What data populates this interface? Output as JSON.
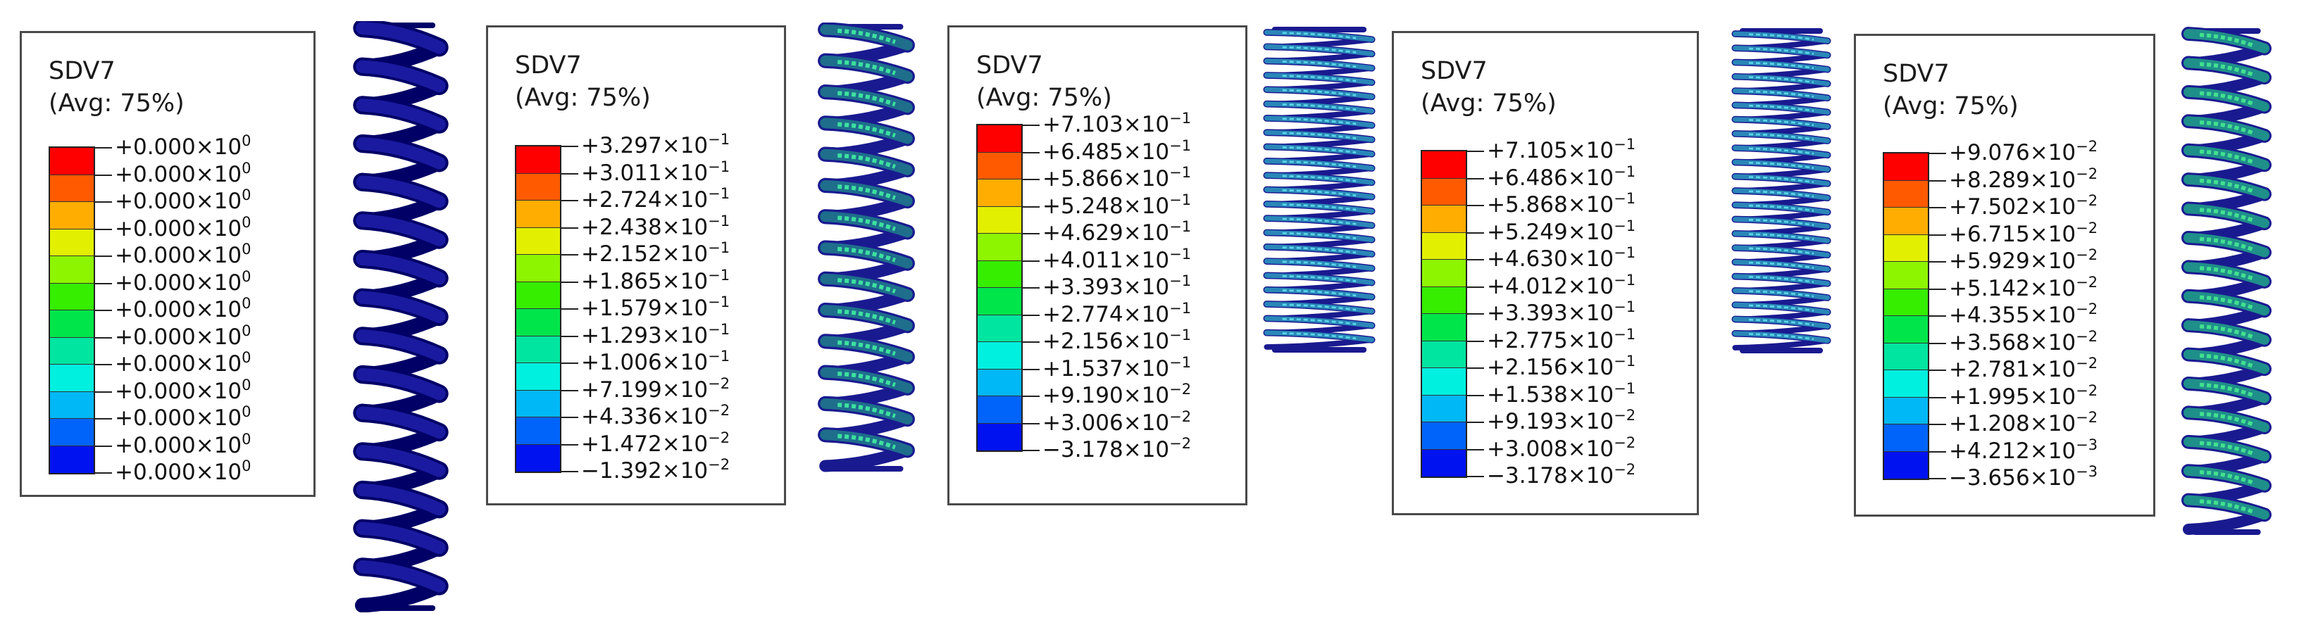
{
  "scale_colors": [
    "#ff0000",
    "#ff5a00",
    "#ffad00",
    "#e2f000",
    "#8ef500",
    "#35ee00",
    "#00e64a",
    "#00e59f",
    "#00f0df",
    "#00b8f5",
    "#0064fa",
    "#0012f0"
  ],
  "panels": [
    {
      "id": "a",
      "title": "SDV7",
      "subtitle": "(Avg: 75%)",
      "labels": [
        {
          "mantissa": "+0.000",
          "exp": "0"
        },
        {
          "mantissa": "+0.000",
          "exp": "0"
        },
        {
          "mantissa": "+0.000",
          "exp": "0"
        },
        {
          "mantissa": "+0.000",
          "exp": "0"
        },
        {
          "mantissa": "+0.000",
          "exp": "0"
        },
        {
          "mantissa": "+0.000",
          "exp": "0"
        },
        {
          "mantissa": "+0.000",
          "exp": "0"
        },
        {
          "mantissa": "+0.000",
          "exp": "0"
        },
        {
          "mantissa": "+0.000",
          "exp": "0"
        },
        {
          "mantissa": "+0.000",
          "exp": "0"
        },
        {
          "mantissa": "+0.000",
          "exp": "0"
        },
        {
          "mantissa": "+0.000",
          "exp": "0"
        },
        {
          "mantissa": "+0.000",
          "exp": "0"
        }
      ],
      "spring": {
        "turns": 15,
        "coil_color": "#1a1aa0",
        "rim_color": "#000066",
        "band_color": null,
        "compression": "none"
      }
    },
    {
      "id": "b",
      "title": "SDV7",
      "subtitle": "(Avg: 75%)",
      "labels": [
        {
          "mantissa": "+3.297",
          "exp": "-1"
        },
        {
          "mantissa": "+3.011",
          "exp": "-1"
        },
        {
          "mantissa": "+2.724",
          "exp": "-1"
        },
        {
          "mantissa": "+2.438",
          "exp": "-1"
        },
        {
          "mantissa": "+2.152",
          "exp": "-1"
        },
        {
          "mantissa": "+1.865",
          "exp": "-1"
        },
        {
          "mantissa": "+1.579",
          "exp": "-1"
        },
        {
          "mantissa": "+1.293",
          "exp": "-1"
        },
        {
          "mantissa": "+1.006",
          "exp": "-1"
        },
        {
          "mantissa": "+7.199",
          "exp": "-2"
        },
        {
          "mantissa": "+4.336",
          "exp": "-2"
        },
        {
          "mantissa": "+1.472",
          "exp": "-2"
        },
        {
          "mantissa": "−1.392",
          "exp": "-2"
        }
      ],
      "spring": {
        "turns": 14,
        "coil_color": "#1e6e8c",
        "rim_color": "#1a1a90",
        "band_color": "#3de0a0",
        "compression": "moderate"
      }
    },
    {
      "id": "c",
      "title": "SDV7",
      "subtitle": "(Avg: 75%)",
      "labels": [
        {
          "mantissa": "+7.103",
          "exp": "-1"
        },
        {
          "mantissa": "+6.485",
          "exp": "-1"
        },
        {
          "mantissa": "+5.866",
          "exp": "-1"
        },
        {
          "mantissa": "+5.248",
          "exp": "-1"
        },
        {
          "mantissa": "+4.629",
          "exp": "-1"
        },
        {
          "mantissa": "+4.011",
          "exp": "-1"
        },
        {
          "mantissa": "+3.393",
          "exp": "-1"
        },
        {
          "mantissa": "+2.774",
          "exp": "-1"
        },
        {
          "mantissa": "+2.156",
          "exp": "-1"
        },
        {
          "mantissa": "+1.537",
          "exp": "-1"
        },
        {
          "mantissa": "+9.190",
          "exp": "-2"
        },
        {
          "mantissa": "+3.006",
          "exp": "-2"
        },
        {
          "mantissa": "−3.178",
          "exp": "-2"
        }
      ],
      "spring": {
        "turns": 22,
        "coil_color": "#2a86b8",
        "rim_color": "#1a1a90",
        "band_color": "#5ad7e8",
        "compression": "high"
      }
    },
    {
      "id": "d",
      "title": "SDV7",
      "subtitle": "(Avg: 75%)",
      "labels": [
        {
          "mantissa": "+7.105",
          "exp": "-1"
        },
        {
          "mantissa": "+6.486",
          "exp": "-1"
        },
        {
          "mantissa": "+5.868",
          "exp": "-1"
        },
        {
          "mantissa": "+5.249",
          "exp": "-1"
        },
        {
          "mantissa": "+4.630",
          "exp": "-1"
        },
        {
          "mantissa": "+4.012",
          "exp": "-1"
        },
        {
          "mantissa": "+3.393",
          "exp": "-1"
        },
        {
          "mantissa": "+2.775",
          "exp": "-1"
        },
        {
          "mantissa": "+2.156",
          "exp": "-1"
        },
        {
          "mantissa": "+1.538",
          "exp": "-1"
        },
        {
          "mantissa": "+9.193",
          "exp": "-2"
        },
        {
          "mantissa": "+3.008",
          "exp": "-2"
        },
        {
          "mantissa": "−3.178",
          "exp": "-2"
        }
      ],
      "spring": {
        "turns": 22,
        "coil_color": "#2a86b8",
        "rim_color": "#1a1a90",
        "band_color": "#5ad7e8",
        "compression": "high"
      }
    },
    {
      "id": "e",
      "title": "SDV7",
      "subtitle": "(Avg: 75%)",
      "labels": [
        {
          "mantissa": "+9.076",
          "exp": "-2"
        },
        {
          "mantissa": "+8.289",
          "exp": "-2"
        },
        {
          "mantissa": "+7.502",
          "exp": "-2"
        },
        {
          "mantissa": "+6.715",
          "exp": "-2"
        },
        {
          "mantissa": "+5.929",
          "exp": "-2"
        },
        {
          "mantissa": "+5.142",
          "exp": "-2"
        },
        {
          "mantissa": "+4.355",
          "exp": "-2"
        },
        {
          "mantissa": "+3.568",
          "exp": "-2"
        },
        {
          "mantissa": "+2.781",
          "exp": "-2"
        },
        {
          "mantissa": "+1.995",
          "exp": "-2"
        },
        {
          "mantissa": "+1.208",
          "exp": "-2"
        },
        {
          "mantissa": "+4.212",
          "exp": "-3"
        },
        {
          "mantissa": "−3.656",
          "exp": "-3"
        }
      ],
      "spring": {
        "turns": 17,
        "coil_color": "#1f8f8a",
        "rim_color": "#1a1a90",
        "band_color": "#42e090",
        "compression": "slight"
      }
    }
  ]
}
